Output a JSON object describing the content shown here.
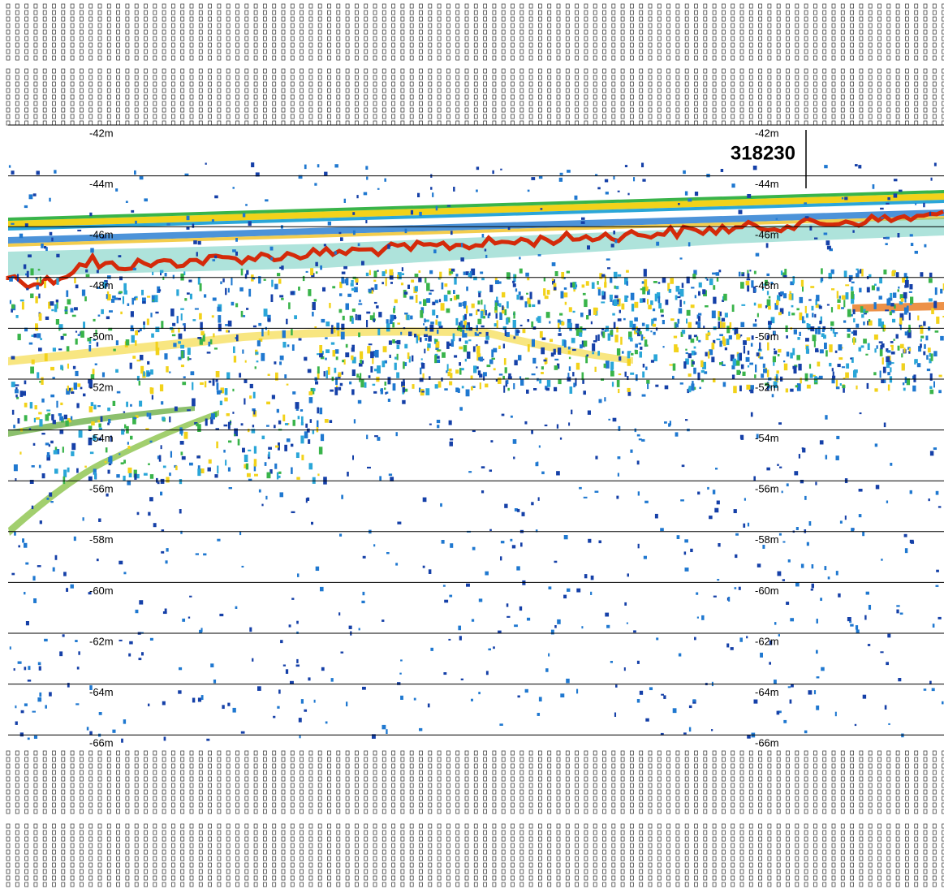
{
  "echogram": {
    "ping": "318230",
    "depth_lines": [
      "-42m",
      "-44m",
      "-46m",
      "-48m",
      "-50m",
      "-52m",
      "-54m",
      "-56m",
      "-58m",
      "-60m",
      "-62m",
      "-64m",
      "-66m"
    ]
  }
}
